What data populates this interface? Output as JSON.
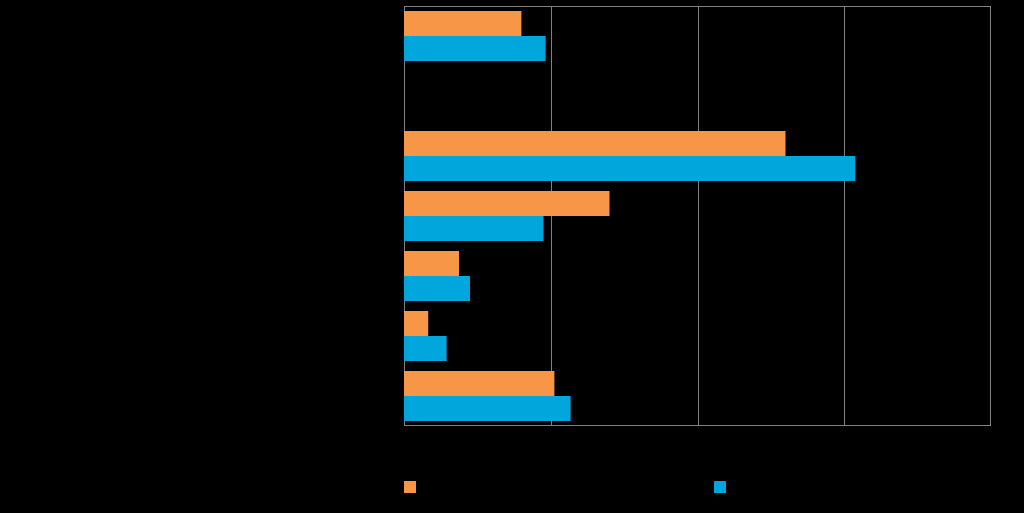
{
  "chart_data": {
    "type": "bar",
    "orientation": "horizontal",
    "categories": [
      "",
      "",
      "",
      "",
      "",
      "",
      ""
    ],
    "series": [
      {
        "color": "#F79646",
        "values": [
          16,
          null,
          52,
          28,
          7.5,
          3.3,
          20.5
        ]
      },
      {
        "color": "#00A6DC",
        "values": [
          19.3,
          null,
          61.5,
          19,
          9,
          5.8,
          22.7
        ]
      }
    ],
    "xlim": [
      0,
      80
    ],
    "grid": true,
    "legend": {
      "placement": "bottom",
      "entries": [
        {
          "color": "#F79646",
          "icon": "square-swatch"
        },
        {
          "color": "#00A6DC",
          "icon": "square-swatch"
        }
      ]
    }
  }
}
